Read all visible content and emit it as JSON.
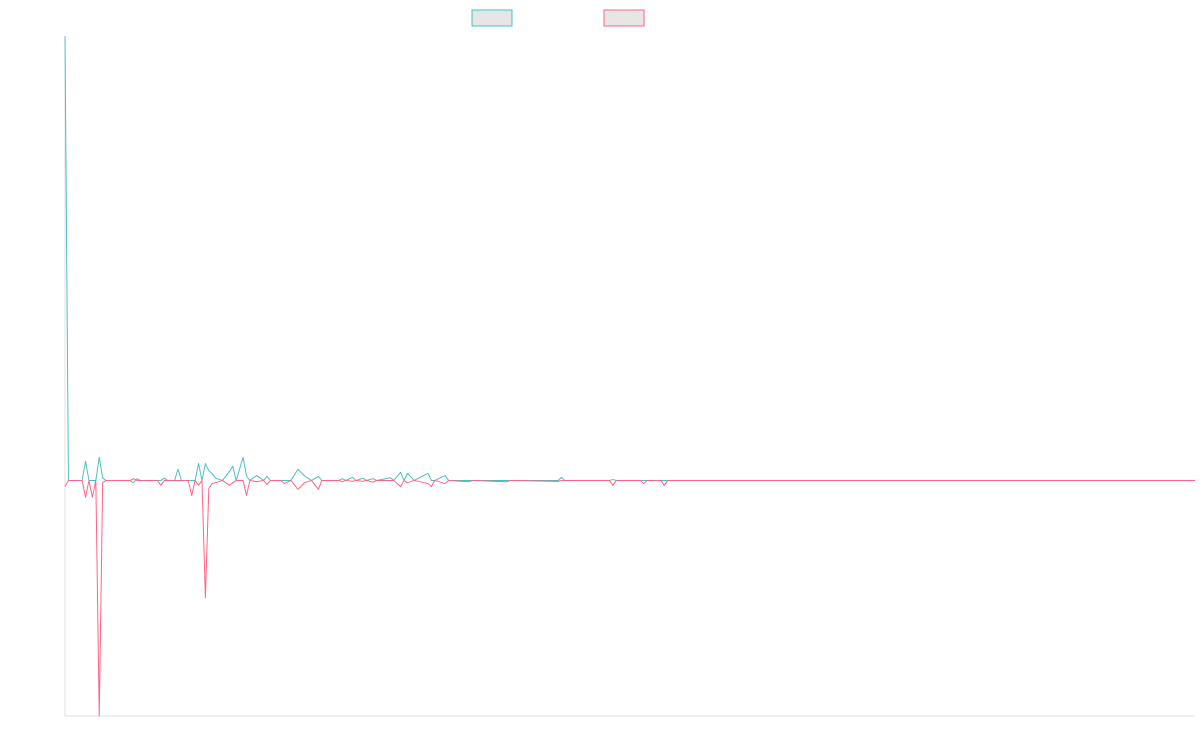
{
  "chart_data": {
    "type": "line",
    "x": [
      0,
      1,
      5,
      6,
      7,
      8,
      9,
      10,
      11,
      12,
      19,
      20,
      21,
      22,
      27,
      28,
      29,
      30,
      32,
      33,
      34,
      36,
      37,
      38,
      39,
      40,
      41,
      42,
      43,
      44,
      46,
      48,
      49,
      50,
      52,
      53,
      54,
      56,
      58,
      59,
      60,
      63,
      64,
      66,
      68,
      70,
      72,
      74,
      75,
      80,
      81,
      82,
      84,
      85,
      87,
      88,
      90,
      91,
      95,
      96,
      98,
      99,
      100,
      102,
      106,
      107,
      108,
      111,
      112,
      118,
      119,
      129,
      130,
      144,
      145,
      146,
      159,
      160,
      161,
      168,
      169,
      170,
      174,
      175,
      176,
      330
    ],
    "series": [
      {
        "color": "#4bc0c0",
        "values": [
          1,
          0,
          0,
          0.043,
          0,
          0,
          0,
          0.052,
          0.005,
          0,
          0,
          -0.005,
          0.004,
          0,
          0,
          0,
          0.005,
          0,
          0,
          0.025,
          0,
          0,
          0,
          0,
          0.038,
          0,
          0.038,
          0.022,
          0.015,
          0.005,
          0,
          0.02,
          0.032,
          0,
          0.052,
          0.01,
          0,
          0.011,
          0,
          0.009,
          0,
          0,
          0,
          0,
          0.025,
          0.01,
          0,
          0.009,
          0,
          0,
          0.004,
          0,
          0.007,
          0,
          0.005,
          0,
          0.004,
          0,
          0.006,
          0,
          0.018,
          0,
          0.016,
          0,
          0.016,
          0,
          0,
          0.011,
          0,
          0,
          0,
          0,
          0,
          0,
          0.007,
          0,
          0,
          0.002,
          0,
          0,
          0,
          0,
          0,
          0,
          0,
          0
        ]
      },
      {
        "color": "#ff6384",
        "values": [
          -0.014,
          0,
          0,
          -0.038,
          0,
          -0.038,
          0,
          -0.53,
          -0.005,
          0,
          0,
          0.004,
          0,
          0,
          0,
          -0.011,
          0,
          0,
          0,
          0,
          0,
          0,
          -0.034,
          0,
          -0.011,
          0,
          -0.264,
          -0.018,
          -0.007,
          -0.005,
          0,
          -0.011,
          -0.005,
          0,
          0,
          -0.034,
          0,
          -0.003,
          0,
          -0.009,
          0,
          0,
          -0.007,
          0,
          -0.02,
          -0.005,
          0,
          -0.02,
          0,
          0,
          -0.003,
          0,
          -0.002,
          0,
          -0.002,
          0,
          -0.004,
          0,
          0,
          0,
          -0.014,
          0,
          -0.005,
          0,
          -0.007,
          -0.014,
          0,
          -0.007,
          0,
          -0.003,
          0,
          -0.003,
          0,
          -0.002,
          0,
          0,
          0,
          -0.011,
          0,
          0,
          -0.007,
          0,
          0,
          -0.011,
          0,
          0
        ]
      }
    ],
    "xlim": [
      0,
      330
    ],
    "ylim": [
      -0.53,
      1
    ]
  }
}
